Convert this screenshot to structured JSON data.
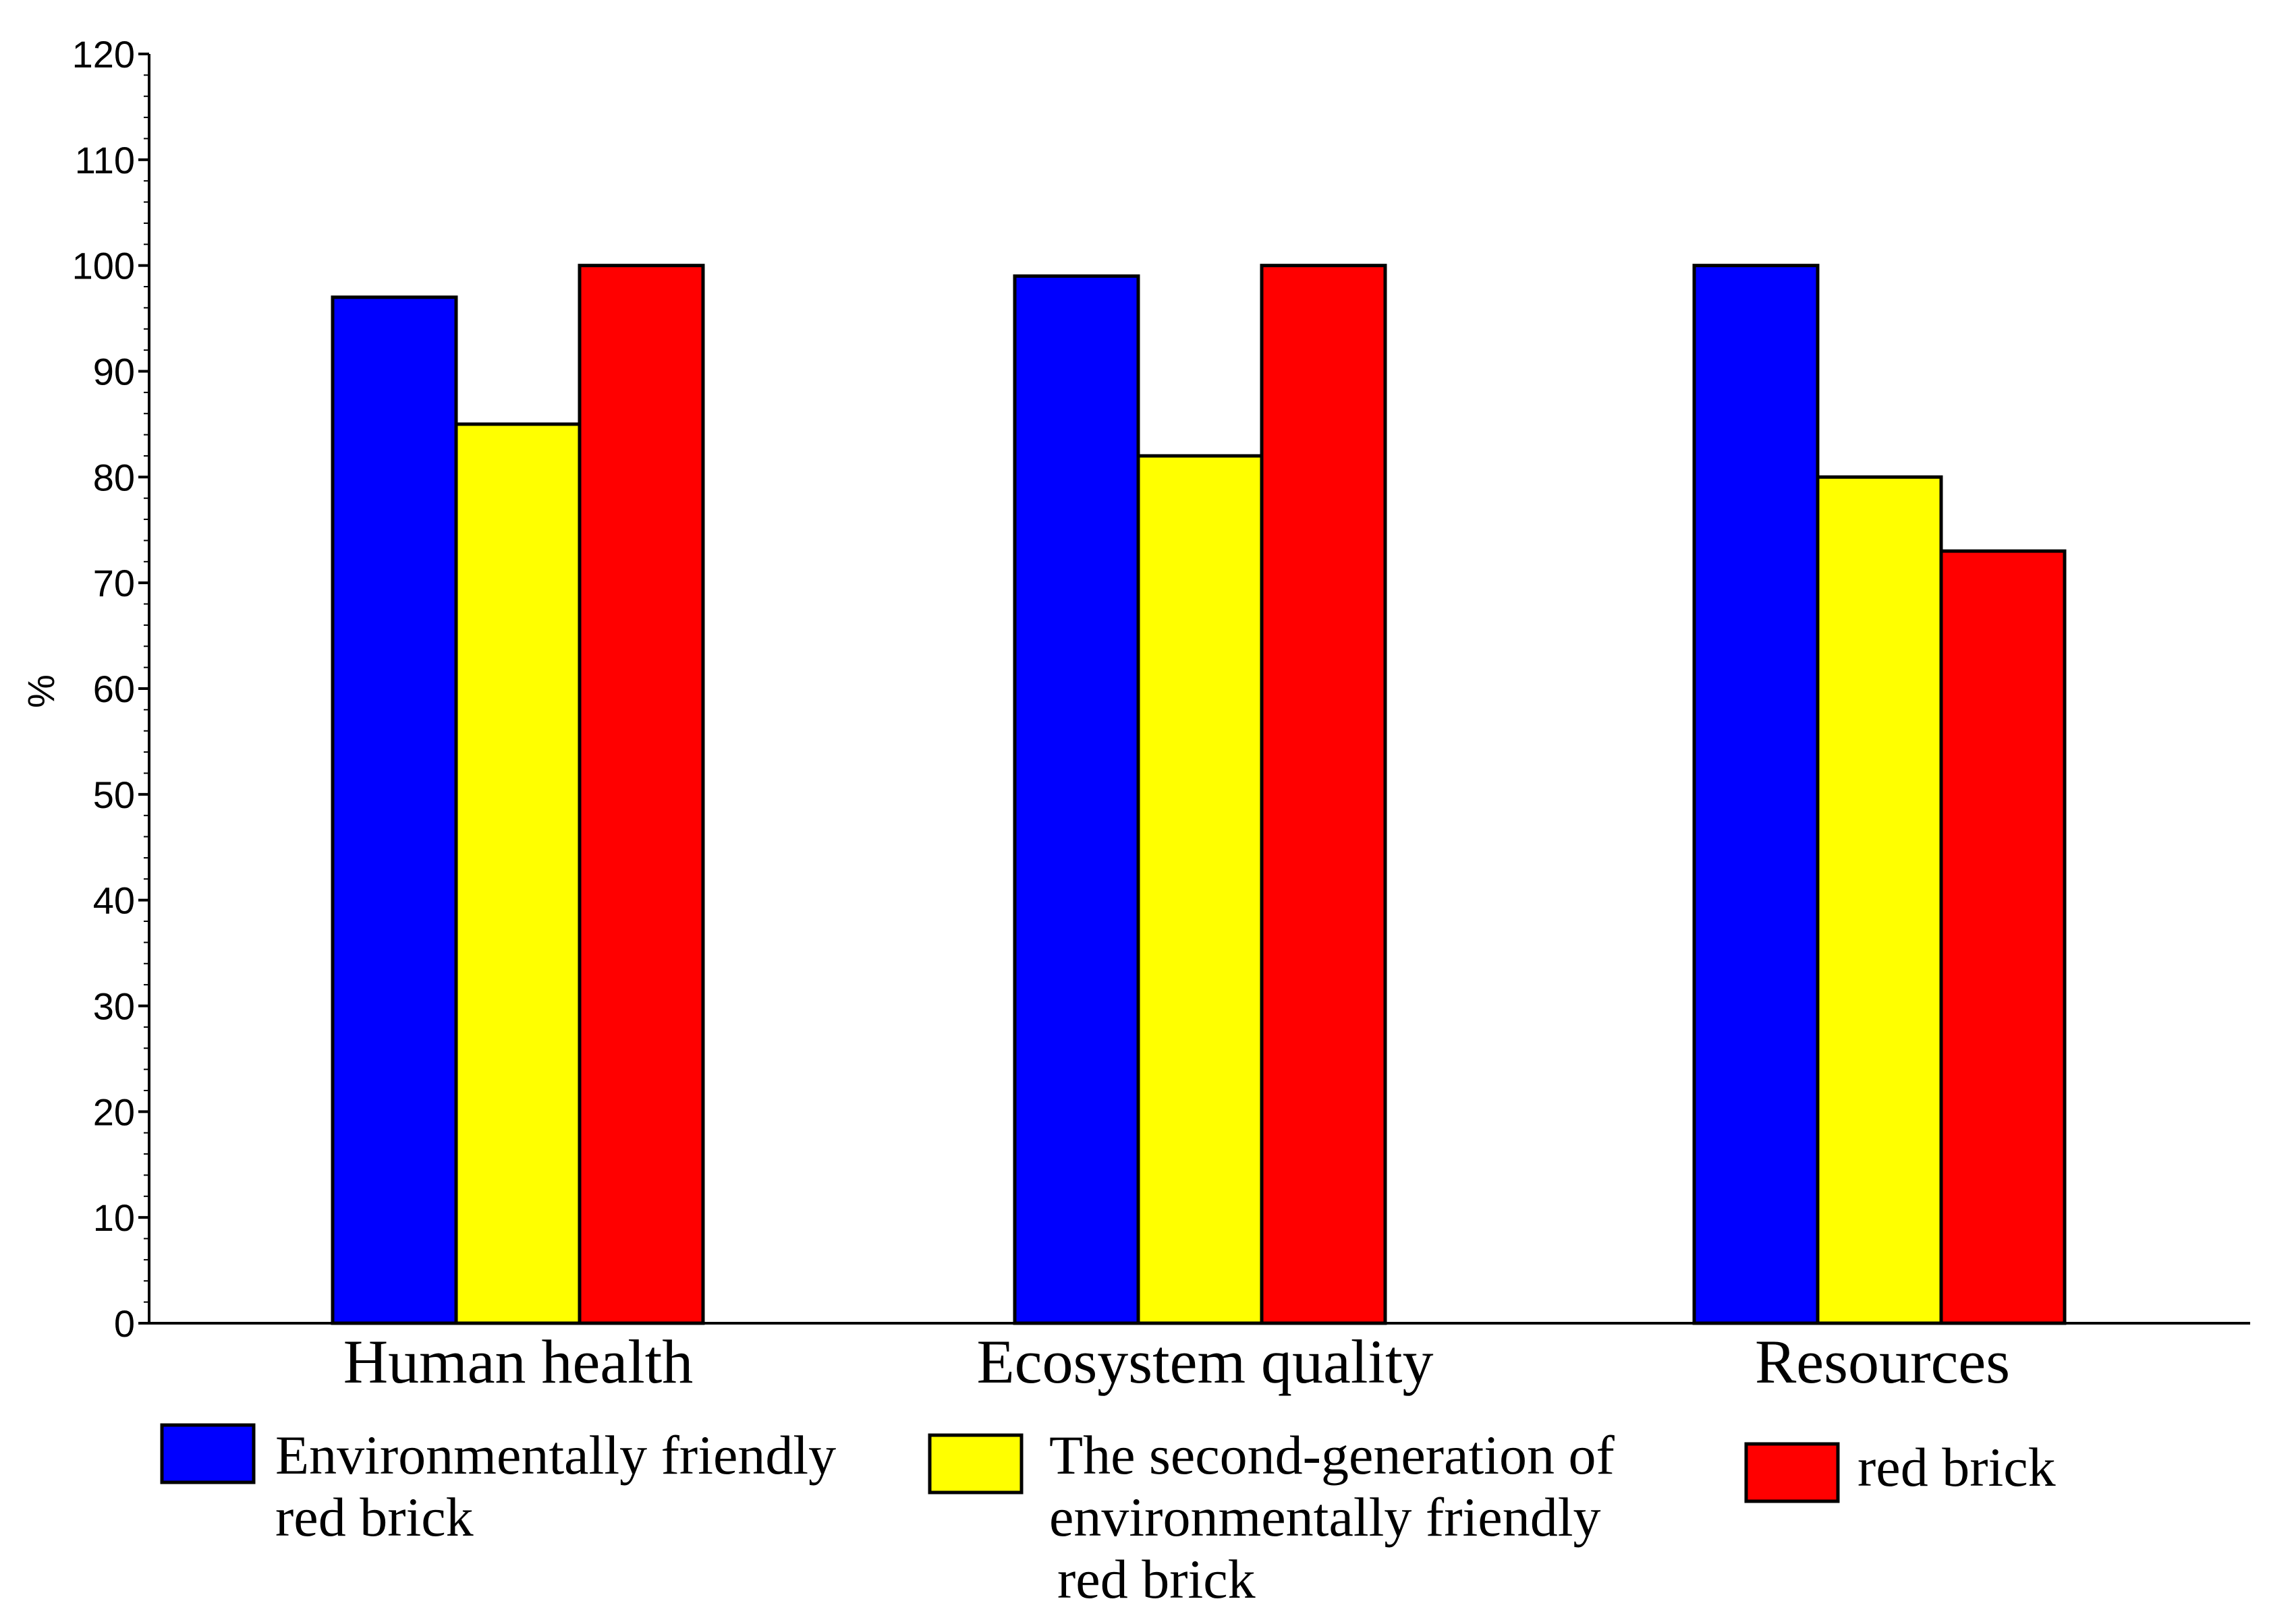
{
  "chart_data": {
    "type": "bar",
    "title": "",
    "xlabel": "",
    "ylabel": "%",
    "ylim": [
      0,
      120
    ],
    "yticks": [
      0,
      10,
      20,
      30,
      40,
      50,
      60,
      70,
      80,
      90,
      100,
      110,
      120
    ],
    "categories": [
      "Human health",
      "Ecosystem quality",
      "Resources"
    ],
    "series": [
      {
        "name": "Environmentally friendly red brick",
        "legend_lines": [
          "Environmentally friendly",
          "red brick"
        ],
        "color": "#0000ff",
        "values": [
          97,
          99,
          100
        ]
      },
      {
        "name": "The second-generation of environmentally friendly red brick",
        "legend_lines": [
          "The second-generation of",
          "environmentally friendly",
          "red brick"
        ],
        "color": "#ffff00",
        "values": [
          85,
          82,
          80
        ]
      },
      {
        "name": "red brick",
        "legend_lines": [
          "red brick"
        ],
        "color": "#ff0000",
        "values": [
          100,
          100,
          73
        ]
      }
    ],
    "legend_position": "bottom",
    "grid": false
  }
}
